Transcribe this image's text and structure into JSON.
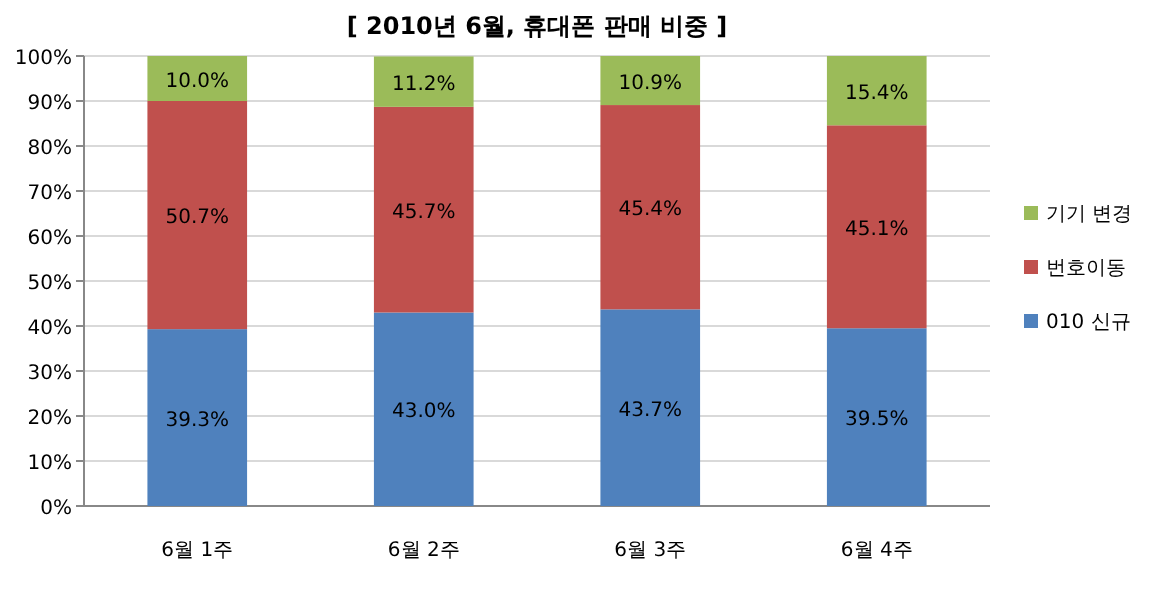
{
  "chart_data": {
    "type": "bar",
    "title": "[ 2010년 6월, 휴대폰 판매 비중 ]",
    "stacked": true,
    "categories": [
      "6월 1주",
      "6월 2주",
      "6월 3주",
      "6월 4주"
    ],
    "series": [
      {
        "name": "010 신규",
        "color": "#4f81bd",
        "values": [
          39.3,
          43.0,
          43.7,
          39.5
        ],
        "value_labels": [
          "39.3%",
          "43.0%",
          "43.7%",
          "39.5%"
        ]
      },
      {
        "name": "번호이동",
        "color": "#c0504d",
        "values": [
          50.7,
          45.7,
          45.4,
          45.1
        ],
        "value_labels": [
          "50.7%",
          "45.7%",
          "45.4%",
          "45.1%"
        ]
      },
      {
        "name": "기기 변경",
        "color": "#9bbb59",
        "values": [
          10.0,
          11.2,
          10.9,
          15.4
        ],
        "value_labels": [
          "10.0%",
          "11.2%",
          "10.9%",
          "15.4%"
        ]
      }
    ],
    "ylim": [
      0,
      100
    ],
    "yticks": [
      {
        "value": 0,
        "label": "0%"
      },
      {
        "value": 10,
        "label": "10%"
      },
      {
        "value": 20,
        "label": "20%"
      },
      {
        "value": 30,
        "label": "30%"
      },
      {
        "value": 40,
        "label": "40%"
      },
      {
        "value": 50,
        "label": "50%"
      },
      {
        "value": 60,
        "label": "60%"
      },
      {
        "value": 70,
        "label": "70%"
      },
      {
        "value": 80,
        "label": "80%"
      },
      {
        "value": 90,
        "label": "90%"
      },
      {
        "value": 100,
        "label": "100%"
      }
    ],
    "grid": "y",
    "legend": "right"
  }
}
